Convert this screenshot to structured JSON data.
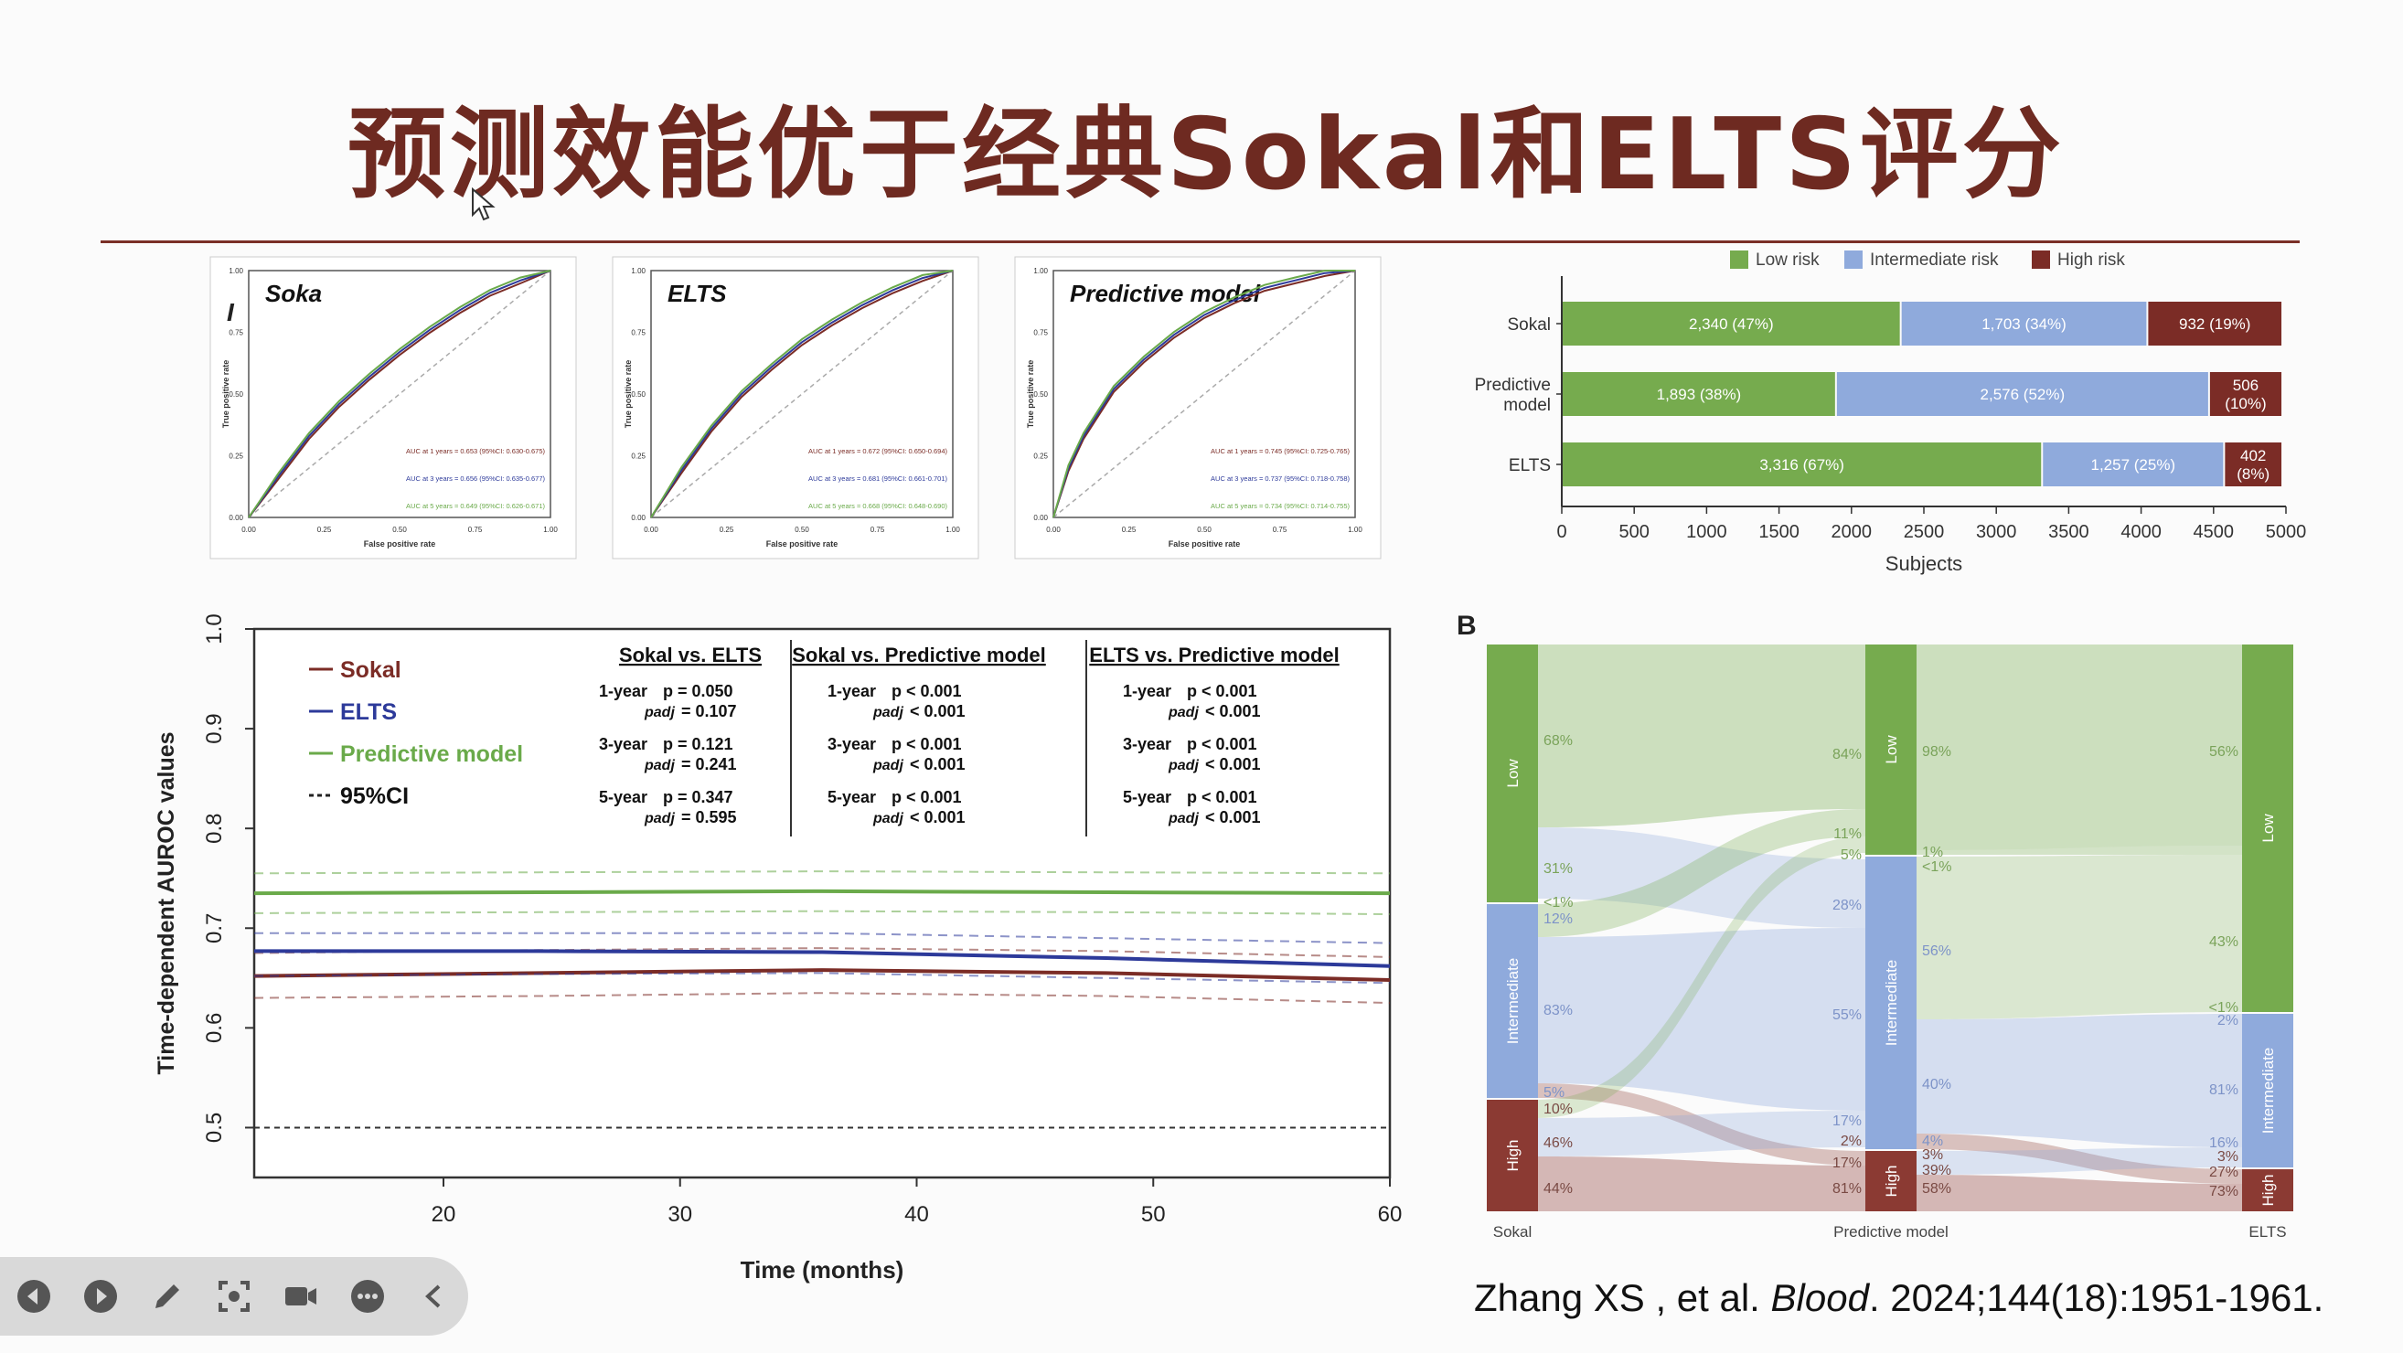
{
  "slide": {
    "title": "预测效能优于经典Sokal和ELTS评分",
    "citation_prefix": "Zhang XS , et al. ",
    "citation_journal": "Blood",
    "citation_suffix": ". 2024;144(18):1951-1961."
  },
  "roc_panels": [
    {
      "title": "Soka",
      "xlabel": "False positive rate",
      "ylabel": "True positive rate",
      "ticks": [
        "0.00",
        "0.25",
        "0.50",
        "0.75",
        "1.00"
      ],
      "auc": [
        "AUC at 1 years = 0.653 (95%CI: 0.630-0.675)",
        "AUC at 3 years = 0.656 (95%CI: 0.635-0.677)",
        "AUC at 5 years = 0.649 (95%CI: 0.626-0.671)"
      ]
    },
    {
      "title": "ELTS",
      "xlabel": "False positive rate",
      "ylabel": "True positive rate",
      "ticks": [
        "0.00",
        "0.25",
        "0.50",
        "0.75",
        "1.00"
      ],
      "auc": [
        "AUC at 1 years = 0.672 (95%CI: 0.650-0.694)",
        "AUC at 3 years = 0.681 (95%CI: 0.661-0.701)",
        "AUC at 5 years = 0.668 (95%CI: 0.648-0.690)"
      ]
    },
    {
      "title": "Predictive model",
      "xlabel": "False positive rate",
      "ylabel": "True positive rate",
      "ticks": [
        "0.00",
        "0.25",
        "0.50",
        "0.75",
        "1.00"
      ],
      "auc": [
        "AUC at 1 years = 0.745 (95%CI: 0.725-0.765)",
        "AUC at 3 years = 0.737 (95%CI: 0.718-0.758)",
        "AUC at 5 years = 0.734 (95%CI: 0.714-0.755)"
      ]
    }
  ],
  "panel_label_i": "I",
  "panel_label_b": "B",
  "chart_data": [
    {
      "type": "bar",
      "title": "",
      "stacked": true,
      "orientation": "horizontal",
      "categories": [
        "Sokal",
        "Predictive model",
        "ELTS"
      ],
      "category_labels": [
        [
          "Sokal"
        ],
        [
          "Predictive",
          "model"
        ],
        [
          "ELTS"
        ]
      ],
      "series": [
        {
          "name": "Low risk",
          "color": "#76ab4e",
          "values": [
            2340,
            1893,
            3316
          ],
          "labels": [
            "2,340 (47%)",
            "1,893 (38%)",
            "3,316 (67%)"
          ]
        },
        {
          "name": "Intermediate risk",
          "color": "#8faadc",
          "values": [
            1703,
            2576,
            1257
          ],
          "labels": [
            "1,703 (34%)",
            "2,576 (52%)",
            "1,257 (25%)"
          ]
        },
        {
          "name": "High risk",
          "color": "#7b2c26",
          "values": [
            932,
            506,
            402
          ],
          "labels": [
            "932 (19%)",
            "506\n(10%)",
            "402\n(8%)"
          ]
        }
      ],
      "xlabel": "Subjects",
      "xlim": [
        0,
        5000
      ],
      "xticks": [
        0,
        500,
        1000,
        1500,
        2000,
        2500,
        3000,
        3500,
        4000,
        4500,
        5000
      ]
    },
    {
      "type": "line",
      "title": "",
      "xlabel": "Time (months)",
      "ylabel": "Time-dependent AUROC values",
      "xlim": [
        12,
        60
      ],
      "ylim": [
        0.45,
        1.0
      ],
      "xticks": [
        20,
        30,
        40,
        50,
        60
      ],
      "yticks": [
        "0.5",
        "0.6",
        "0.7",
        "0.8",
        "0.9",
        "1.0"
      ],
      "reference_line": 0.5,
      "series": [
        {
          "name": "Sokal",
          "color": "#7b2c26",
          "x": [
            12,
            24,
            36,
            48,
            60
          ],
          "values": [
            0.652,
            0.655,
            0.658,
            0.655,
            0.648
          ],
          "ci_low": [
            0.63,
            0.632,
            0.635,
            0.632,
            0.625
          ],
          "ci_high": [
            0.675,
            0.678,
            0.68,
            0.677,
            0.671
          ]
        },
        {
          "name": "ELTS",
          "color": "#2d3a9a",
          "x": [
            12,
            24,
            36,
            48,
            60
          ],
          "values": [
            0.677,
            0.677,
            0.676,
            0.67,
            0.662
          ],
          "ci_low": [
            0.652,
            0.654,
            0.655,
            0.65,
            0.645
          ],
          "ci_high": [
            0.695,
            0.695,
            0.695,
            0.69,
            0.685
          ]
        },
        {
          "name": "Predictive model",
          "color": "#6aaa4a",
          "x": [
            12,
            24,
            36,
            48,
            60
          ],
          "values": [
            0.735,
            0.736,
            0.737,
            0.736,
            0.735
          ],
          "ci_low": [
            0.715,
            0.716,
            0.717,
            0.716,
            0.714
          ],
          "ci_high": [
            0.755,
            0.756,
            0.757,
            0.756,
            0.755
          ]
        }
      ],
      "legend": [
        {
          "label": "Sokal",
          "color": "#7b2c26",
          "style": "solid"
        },
        {
          "label": "ELTS",
          "color": "#2d3a9a",
          "style": "solid"
        },
        {
          "label": "Predictive model",
          "color": "#6aaa4a",
          "style": "solid"
        },
        {
          "label": "95%CI",
          "color": "#222222",
          "style": "dashed"
        }
      ],
      "comparisons": [
        {
          "header": "Sokal vs. ELTS",
          "rows": [
            {
              "year": "1-year",
              "p": "p = 0.050",
              "padj": "= 0.107"
            },
            {
              "year": "3-year",
              "p": "p = 0.121",
              "padj": "= 0.241"
            },
            {
              "year": "5-year",
              "p": "p = 0.347",
              "padj": "= 0.595"
            }
          ]
        },
        {
          "header": "Sokal vs. Predictive model",
          "rows": [
            {
              "year": "1-year",
              "p": "p < 0.001",
              "padj": "< 0.001"
            },
            {
              "year": "3-year",
              "p": "p < 0.001",
              "padj": "< 0.001"
            },
            {
              "year": "5-year",
              "p": "p < 0.001",
              "padj": "< 0.001"
            }
          ]
        },
        {
          "header": "ELTS vs. Predictive model",
          "rows": [
            {
              "year": "1-year",
              "p": "p < 0.001",
              "padj": "< 0.001"
            },
            {
              "year": "3-year",
              "p": "p < 0.001",
              "padj": "< 0.001"
            },
            {
              "year": "5-year",
              "p": "p < 0.001",
              "padj": "< 0.001"
            }
          ]
        }
      ],
      "padj_label": "padj"
    },
    {
      "type": "sankey",
      "axes": [
        "Sokal",
        "Predictive model",
        "ELTS"
      ],
      "node_labels": [
        "Low",
        "Intermediate",
        "High"
      ],
      "colors": {
        "low": "#76ab4e",
        "intermediate": "#8faadc",
        "high": "#8b3a33"
      },
      "sokal_pct": [
        "68%",
        "31%",
        "<1%",
        "12%",
        "83%",
        "5%",
        "10%",
        "46%",
        "44%"
      ],
      "pm_left_pct": [
        "84%",
        "11%",
        "5%",
        "28%",
        "55%",
        "17%",
        "2%",
        "17%",
        "81%"
      ],
      "pm_right_pct": [
        "98%",
        "1%",
        "<1%",
        "56%",
        "40%",
        "4%",
        "3%",
        "39%",
        "58%"
      ],
      "elts_pct": [
        "56%",
        "43%",
        "<1%",
        "2%",
        "81%",
        "16%",
        "3%",
        "27%",
        "73%"
      ]
    }
  ],
  "toolbar": {
    "icons": [
      "prev-icon",
      "play-icon",
      "pen-icon",
      "screenshot-icon",
      "camera-icon",
      "more-icon",
      "collapse-icon"
    ]
  }
}
